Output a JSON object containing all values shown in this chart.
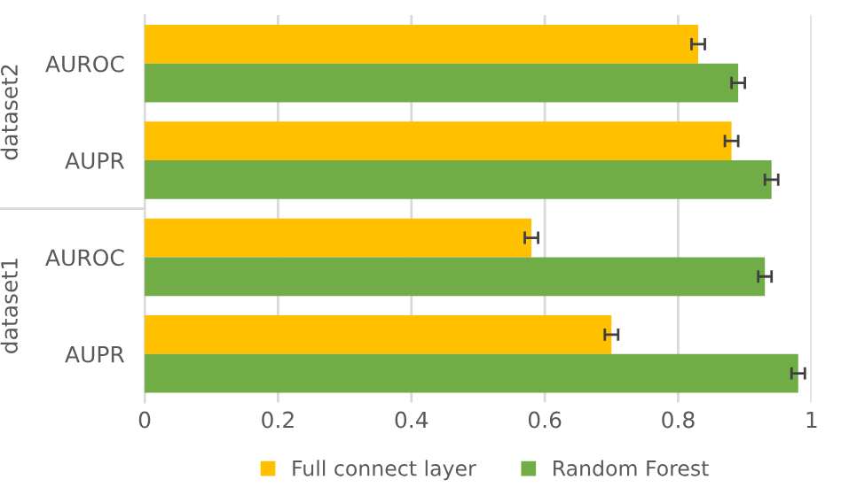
{
  "chart_data": {
    "type": "bar",
    "orientation": "horizontal",
    "categories": [
      "AUROC",
      "AUPR",
      "AUROC",
      "AUPR"
    ],
    "annotations": [
      "dataset2",
      "dataset1"
    ],
    "series": [
      {
        "name": "Full connect layer",
        "color": "#ffc000",
        "values": [
          0.83,
          0.88,
          0.58,
          0.7
        ],
        "errors": [
          0.01,
          0.01,
          0.01,
          0.01
        ]
      },
      {
        "name": "Random Forest",
        "color": "#70ad47",
        "values": [
          0.89,
          0.94,
          0.93,
          0.98
        ],
        "errors": [
          0.01,
          0.01,
          0.01,
          0.01
        ]
      }
    ],
    "xlim": [
      0,
      1
    ],
    "xticks": [
      0,
      0.2,
      0.4,
      0.6,
      0.8,
      1
    ],
    "grid": "x",
    "legend": "bottom"
  }
}
